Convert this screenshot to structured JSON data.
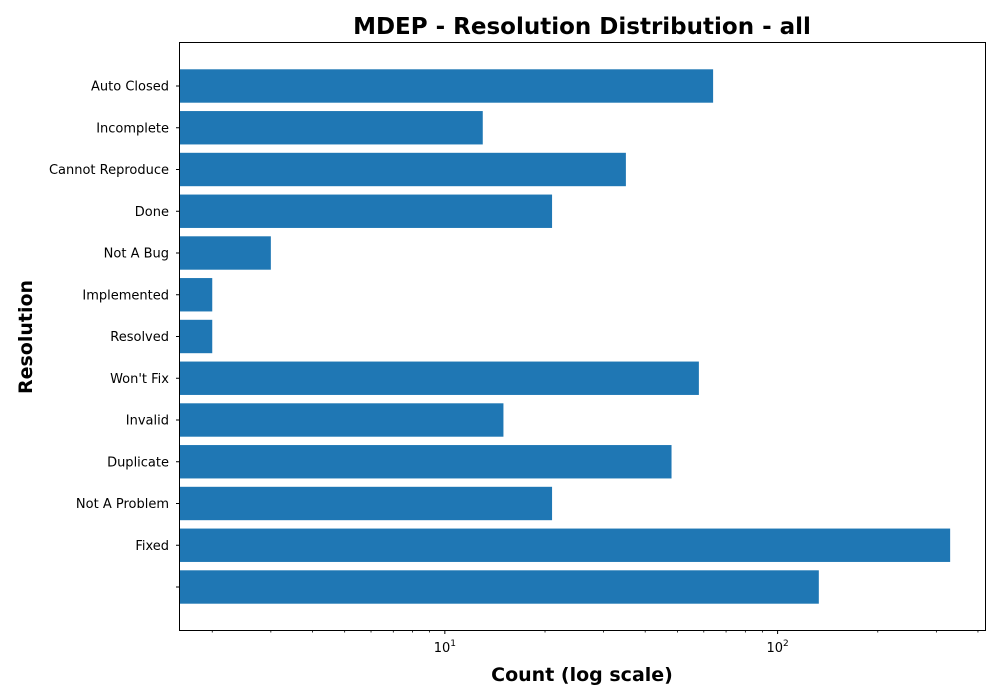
{
  "chart_data": {
    "type": "bar",
    "orientation": "horizontal",
    "title": "MDEP - Resolution Distribution - all",
    "xlabel": "Count (log scale)",
    "ylabel": "Resolution",
    "xscale": "log",
    "xlim": [
      1.6,
      420
    ],
    "x_major_ticks": [
      {
        "value": 10,
        "base": "10",
        "exp": "1"
      },
      {
        "value": 100,
        "base": "10",
        "exp": "2"
      }
    ],
    "categories": [
      "Auto Closed",
      "Incomplete",
      "Cannot Reproduce",
      "Done",
      "Not A Bug",
      "Implemented",
      "Resolved",
      "Won't Fix",
      "Invalid",
      "Duplicate",
      "Not A Problem",
      "Fixed",
      ""
    ],
    "values": [
      64,
      13,
      35,
      21,
      3,
      2,
      2,
      58,
      15,
      48,
      21,
      330,
      133
    ],
    "bar_color": "#1f77b4"
  }
}
